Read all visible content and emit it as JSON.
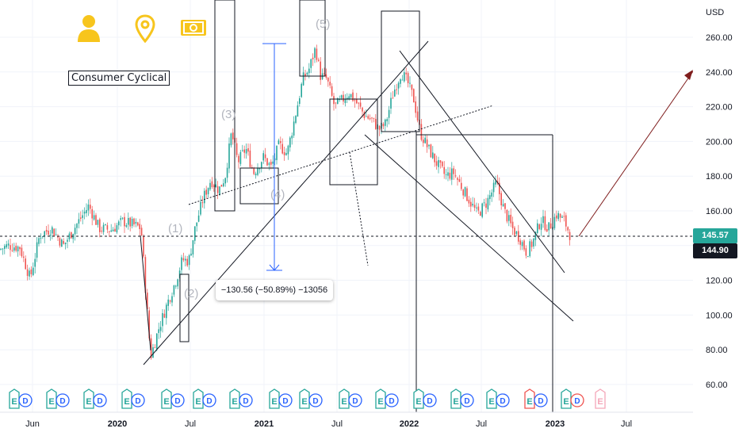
{
  "chart_data": {
    "type": "candlestick",
    "currency_label": "USD",
    "y_ticks": [
      "260.00",
      "240.00",
      "220.00",
      "200.00",
      "180.00",
      "160.00",
      "140.00",
      "120.00",
      "100.00",
      "80.00",
      "60.00"
    ],
    "x_ticks": [
      "Jun",
      "2020",
      "Jul",
      "2021",
      "Jul",
      "2022",
      "Jul",
      "2023",
      "Jul"
    ],
    "ylim": [
      52,
      272
    ],
    "last_price": "145.57",
    "prev_close": "144.90",
    "sector_label": "Consumer Cyclical",
    "measure_label": "−130.56 (−50.89%) −13056",
    "wave_labels": [
      "(1)",
      "(2)",
      "(3)",
      "(4)",
      "(5)"
    ],
    "earnings_marker": "E",
    "dividend_marker": "D",
    "series": [
      {
        "t": 0,
        "p": 138
      },
      {
        "t": 10,
        "p": 140
      },
      {
        "t": 25,
        "p": 139
      },
      {
        "t": 38,
        "p": 121
      },
      {
        "t": 50,
        "p": 146
      },
      {
        "t": 65,
        "p": 150
      },
      {
        "t": 80,
        "p": 140
      },
      {
        "t": 95,
        "p": 151
      },
      {
        "t": 112,
        "p": 163
      },
      {
        "t": 125,
        "p": 150
      },
      {
        "t": 140,
        "p": 149
      },
      {
        "t": 155,
        "p": 154
      },
      {
        "t": 168,
        "p": 152
      },
      {
        "t": 178,
        "p": 150
      },
      {
        "t": 184,
        "p": 112
      },
      {
        "t": 190,
        "p": 76
      },
      {
        "t": 200,
        "p": 92
      },
      {
        "t": 212,
        "p": 108
      },
      {
        "t": 222,
        "p": 120
      },
      {
        "t": 230,
        "p": 132
      },
      {
        "t": 238,
        "p": 131
      },
      {
        "t": 246,
        "p": 150
      },
      {
        "t": 256,
        "p": 167
      },
      {
        "t": 266,
        "p": 178
      },
      {
        "t": 276,
        "p": 172
      },
      {
        "t": 284,
        "p": 180
      },
      {
        "t": 292,
        "p": 205
      },
      {
        "t": 300,
        "p": 188
      },
      {
        "t": 310,
        "p": 196
      },
      {
        "t": 320,
        "p": 182
      },
      {
        "t": 332,
        "p": 191
      },
      {
        "t": 342,
        "p": 185
      },
      {
        "t": 352,
        "p": 198
      },
      {
        "t": 362,
        "p": 193
      },
      {
        "t": 372,
        "p": 214
      },
      {
        "t": 382,
        "p": 236
      },
      {
        "t": 390,
        "p": 242
      },
      {
        "t": 398,
        "p": 254
      },
      {
        "t": 404,
        "p": 238
      },
      {
        "t": 412,
        "p": 236
      },
      {
        "t": 422,
        "p": 220
      },
      {
        "t": 432,
        "p": 224
      },
      {
        "t": 440,
        "p": 228
      },
      {
        "t": 450,
        "p": 222
      },
      {
        "t": 460,
        "p": 215
      },
      {
        "t": 470,
        "p": 212
      },
      {
        "t": 478,
        "p": 207
      },
      {
        "t": 486,
        "p": 210
      },
      {
        "t": 496,
        "p": 228
      },
      {
        "t": 506,
        "p": 240
      },
      {
        "t": 514,
        "p": 234
      },
      {
        "t": 522,
        "p": 224
      },
      {
        "t": 530,
        "p": 205
      },
      {
        "t": 540,
        "p": 196
      },
      {
        "t": 550,
        "p": 188
      },
      {
        "t": 562,
        "p": 180
      },
      {
        "t": 572,
        "p": 182
      },
      {
        "t": 582,
        "p": 174
      },
      {
        "t": 592,
        "p": 166
      },
      {
        "t": 602,
        "p": 158
      },
      {
        "t": 614,
        "p": 165
      },
      {
        "t": 626,
        "p": 176
      },
      {
        "t": 636,
        "p": 160
      },
      {
        "t": 646,
        "p": 150
      },
      {
        "t": 656,
        "p": 144
      },
      {
        "t": 664,
        "p": 136
      },
      {
        "t": 672,
        "p": 142
      },
      {
        "t": 682,
        "p": 155
      },
      {
        "t": 692,
        "p": 150
      },
      {
        "t": 702,
        "p": 158
      },
      {
        "t": 712,
        "p": 154
      },
      {
        "t": 720,
        "p": 145
      }
    ]
  }
}
